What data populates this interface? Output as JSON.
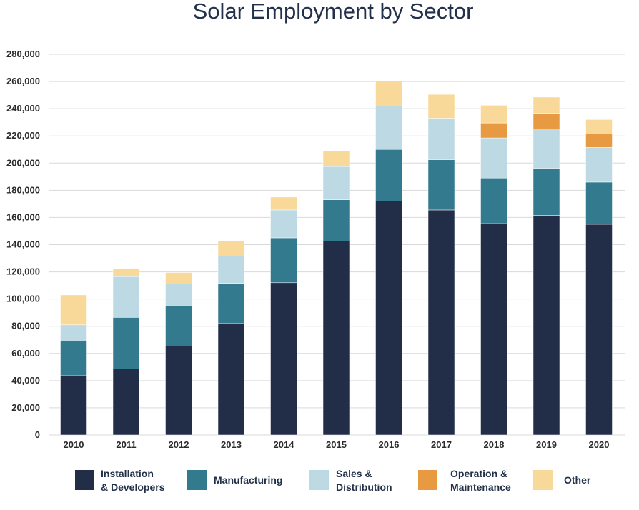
{
  "chart_data": {
    "type": "bar",
    "stacked": true,
    "title": "Solar Employment by Sector",
    "xlabel": "",
    "ylabel": "",
    "ylim": [
      0,
      280000
    ],
    "yticks": [
      0,
      20000,
      40000,
      60000,
      80000,
      100000,
      120000,
      140000,
      160000,
      180000,
      200000,
      220000,
      240000,
      260000,
      280000
    ],
    "ytick_labels": [
      "0",
      "20,000",
      "40,000",
      "60,000",
      "80,000",
      "100,000",
      "120,000",
      "140,000",
      "160,000",
      "180,000",
      "200,000",
      "220,000",
      "240,000",
      "260,000",
      "280,000"
    ],
    "grid": true,
    "legend_position": "bottom",
    "categories": [
      "2010",
      "2011",
      "2012",
      "2013",
      "2014",
      "2015",
      "2016",
      "2017",
      "2018",
      "2019",
      "2020"
    ],
    "series": [
      {
        "name": "Installation & Developers",
        "legend_lines": [
          "Installation",
          "& Developers"
        ],
        "color": "#222e48",
        "values": [
          44000,
          48500,
          65500,
          82000,
          112000,
          142500,
          172000,
          165500,
          155500,
          161500,
          155000
        ]
      },
      {
        "name": "Manufacturing",
        "legend_lines": [
          "Manufacturing"
        ],
        "color": "#337a8f",
        "values": [
          25000,
          38000,
          29500,
          29500,
          33000,
          30500,
          38000,
          37000,
          33500,
          34500,
          31000
        ]
      },
      {
        "name": "Sales & Distribution",
        "legend_lines": [
          "Sales &",
          "Distribution"
        ],
        "color": "#bdd9e3",
        "values": [
          12000,
          30000,
          16000,
          20000,
          20500,
          24500,
          32000,
          30500,
          29500,
          29000,
          25500
        ]
      },
      {
        "name": "Operation & Maintenance",
        "legend_lines": [
          "Operation &",
          "Maintenance"
        ],
        "color": "#e89a43",
        "values": [
          0,
          0,
          0,
          0,
          0,
          0,
          0,
          0,
          11000,
          11500,
          10000
        ]
      },
      {
        "name": "Other",
        "legend_lines": [
          "Other"
        ],
        "color": "#f9d99a",
        "values": [
          22000,
          6000,
          8500,
          11500,
          9500,
          11500,
          18500,
          17500,
          13000,
          12000,
          10500
        ]
      }
    ]
  }
}
